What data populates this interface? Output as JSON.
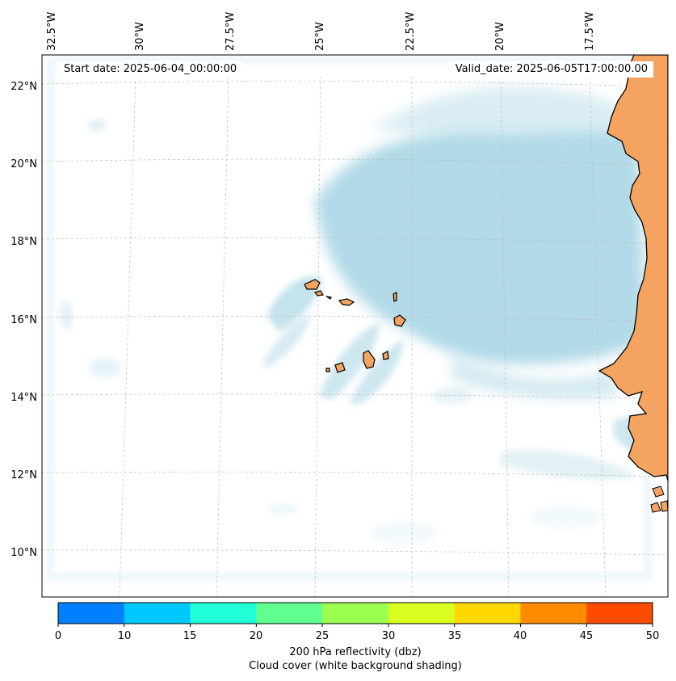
{
  "map": {
    "start_date_label": "Start date: 2025-06-04_00:00:00",
    "valid_date_label": "Valid_date: 2025-06-05T17:00:00.00",
    "lon_ticks": [
      "32.5°W",
      "30°W",
      "27.5°W",
      "25°W",
      "22.5°W",
      "20°W",
      "17.5°W"
    ],
    "lat_ticks": [
      "22°N",
      "20°N",
      "18°N",
      "16°N",
      "14°N",
      "12°N",
      "10°N"
    ],
    "land_color": "#f4a460",
    "cloud_color": "#add8e6",
    "gridlines": true
  },
  "colorbar": {
    "label_line1": "200 hPa reflectivity (dbz)",
    "label_line2": "Cloud cover (white background shading)",
    "ticks": [
      "0",
      "10",
      "15",
      "20",
      "25",
      "30",
      "35",
      "40",
      "45",
      "50"
    ],
    "colors": [
      "#0080ff",
      "#00c8ff",
      "#20ffd8",
      "#60ff90",
      "#9cff50",
      "#d8ff20",
      "#ffd800",
      "#ff8c00",
      "#ff4b00"
    ]
  }
}
